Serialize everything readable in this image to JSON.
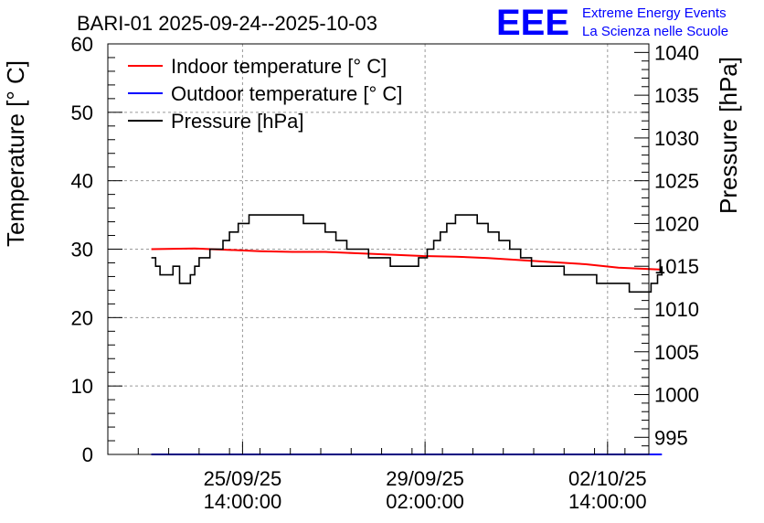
{
  "chart_data": {
    "type": "line",
    "title": "BARI-01 2025-09-24--2025-10-03",
    "ylabel_left": "Temperature [° C]",
    "ylabel_right": "Pressure [hPa]",
    "xlabel": "",
    "y_left_range": [
      0,
      60
    ],
    "y_right_range": [
      993,
      1041
    ],
    "x_range_hours": [
      0,
      249
    ],
    "y_left_ticks": [
      "0",
      "10",
      "20",
      "30",
      "40",
      "50",
      "60"
    ],
    "y_right_ticks": [
      "995",
      "1000",
      "1005",
      "1010",
      "1015",
      "1020",
      "1025",
      "1030",
      "1035",
      "1040"
    ],
    "x_ticks": [
      {
        "hour": 62,
        "date": "25/09/25",
        "time": "14:00:00"
      },
      {
        "hour": 146,
        "date": "29/09/25",
        "time": "02:00:00"
      },
      {
        "hour": 230,
        "date": "02/10/25",
        "time": "14:00:00"
      }
    ],
    "grid": true,
    "legend_position": "top-left",
    "series": [
      {
        "name": "Indoor temperature [° C]",
        "color": "#ff0000",
        "axis": "left",
        "x": [
          20,
          40,
          55,
          70,
          85,
          100,
          115,
          130,
          145,
          160,
          175,
          190,
          205,
          220,
          235,
          255
        ],
        "values": [
          30.0,
          30.1,
          29.9,
          29.7,
          29.6,
          29.6,
          29.4,
          29.2,
          29.0,
          28.9,
          28.7,
          28.4,
          28.1,
          27.8,
          27.3,
          27.0
        ]
      },
      {
        "name": "Outdoor temperature [° C]",
        "color": "#0000ff",
        "axis": "left",
        "x": [
          20,
          255
        ],
        "values": [
          0,
          0
        ]
      },
      {
        "name": "Pressure [hPa]",
        "color": "#000000",
        "axis": "right",
        "x": [
          20,
          22,
          24,
          27,
          30,
          33,
          36,
          38,
          40,
          42,
          44,
          47,
          50,
          53,
          56,
          60,
          65,
          70,
          75,
          80,
          85,
          90,
          95,
          100,
          105,
          110,
          115,
          120,
          125,
          130,
          133,
          140,
          143,
          147,
          150,
          153,
          156,
          160,
          165,
          170,
          175,
          180,
          185,
          190,
          195,
          200,
          205,
          210,
          215,
          220,
          225,
          230,
          235,
          240,
          245,
          250,
          253,
          255
        ],
        "values": [
          1016,
          1015,
          1014,
          1014,
          1015,
          1013,
          1013,
          1014,
          1015,
          1016,
          1016,
          1017,
          1017,
          1018,
          1019,
          1020,
          1021,
          1021,
          1021,
          1021,
          1021,
          1020,
          1020,
          1019,
          1018,
          1017,
          1017,
          1016,
          1016,
          1015,
          1015,
          1015,
          1016,
          1017,
          1018,
          1019,
          1020,
          1021,
          1021,
          1020,
          1019,
          1018,
          1017,
          1016,
          1015,
          1015,
          1015,
          1014,
          1014,
          1014,
          1013,
          1013,
          1013,
          1012,
          1012,
          1013,
          1014,
          1015
        ]
      }
    ]
  },
  "logo": {
    "mark": "EEE",
    "line1": "Extreme Energy Events",
    "line2": "La Scienza nelle Scuole",
    "color": "#0000ff"
  }
}
